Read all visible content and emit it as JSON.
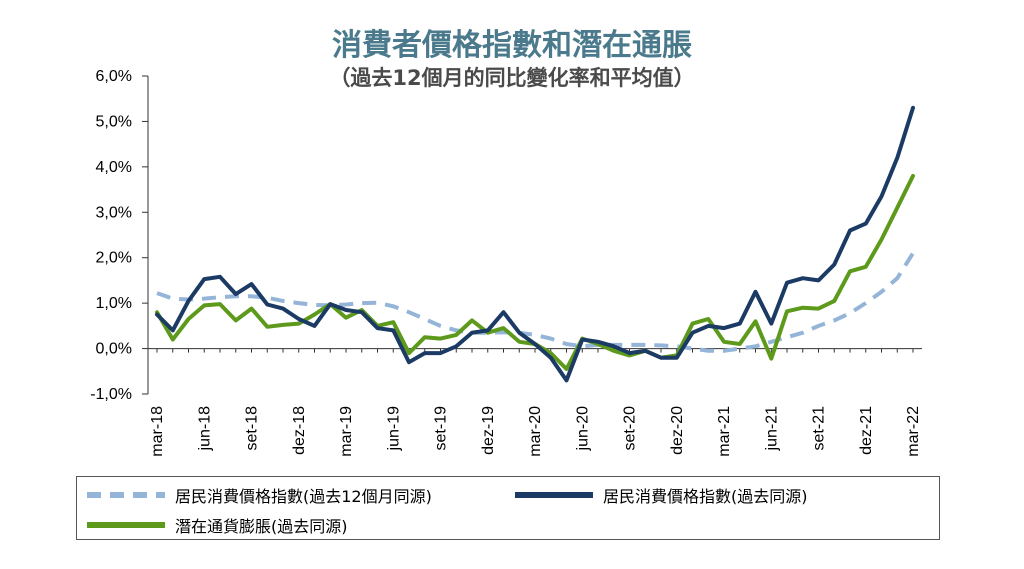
{
  "title": "消費者價格指數和潛在通脹",
  "subtitle": "（過去12個月的同比變化率和平均值）",
  "colors": {
    "avg": "#94b4d8",
    "cpi": "#1b3a64",
    "core": "#5d9a1c"
  },
  "legend": {
    "avg_label": "居民消費價格指數(過去12個月同源)",
    "cpi_label": "居民消費價格指數(過去同源)",
    "core_label": "潛在通貨膨脹(過去同源)"
  },
  "chart_data": {
    "type": "line",
    "title": "消費者價格指數和潛在通脹",
    "subtitle": "（過去12個月的同比變化率和平均值）",
    "ylim": [
      -1,
      6
    ],
    "yticks": [
      "6,0%",
      "5,0%",
      "4,0%",
      "3,0%",
      "2,0%",
      "1,0%",
      "0,0%",
      "-1,0%"
    ],
    "xtick_labels": [
      "mar-18",
      "jun-18",
      "set-18",
      "dez-18",
      "mar-19",
      "jun-19",
      "set-19",
      "dez-19",
      "mar-20",
      "jun-20",
      "set-20",
      "dez-20",
      "mar-21",
      "jun-21",
      "set-21",
      "dez-21",
      "mar-22"
    ],
    "x": [
      "mar-18",
      "abr-18",
      "mai-18",
      "jun-18",
      "jul-18",
      "ago-18",
      "set-18",
      "out-18",
      "nov-18",
      "dez-18",
      "jan-19",
      "fev-19",
      "mar-19",
      "abr-19",
      "mai-19",
      "jun-19",
      "jul-19",
      "ago-19",
      "set-19",
      "out-19",
      "nov-19",
      "dez-19",
      "jan-20",
      "fev-20",
      "mar-20",
      "abr-20",
      "mai-20",
      "jun-20",
      "jul-20",
      "ago-20",
      "set-20",
      "out-20",
      "nov-20",
      "dez-20",
      "jan-21",
      "fev-21",
      "mar-21",
      "abr-21",
      "mai-21",
      "jun-21",
      "jul-21",
      "ago-21",
      "set-21",
      "out-21",
      "nov-21",
      "dez-21",
      "jan-22",
      "fev-22",
      "mar-22"
    ],
    "legend_position": "bottom",
    "grid": false,
    "series": [
      {
        "name": "居民消費價格指數(過去12個月同源)",
        "style": "dashed",
        "values": [
          1.22,
          1.1,
          1.08,
          1.1,
          1.13,
          1.15,
          1.15,
          1.12,
          1.05,
          1.0,
          0.96,
          0.95,
          0.97,
          1.0,
          1.01,
          0.93,
          0.8,
          0.65,
          0.5,
          0.4,
          0.35,
          0.35,
          0.36,
          0.35,
          0.3,
          0.22,
          0.1,
          0.05,
          0.08,
          0.08,
          0.08,
          0.08,
          0.07,
          0.05,
          0.0,
          -0.05,
          -0.05,
          0.0,
          0.05,
          0.15,
          0.25,
          0.35,
          0.5,
          0.62,
          0.78,
          1.0,
          1.25,
          1.55,
          2.1
        ]
      },
      {
        "name": "居民消費價格指數(過去同源)",
        "style": "solid",
        "values": [
          0.75,
          0.4,
          1.05,
          1.53,
          1.58,
          1.2,
          1.42,
          0.97,
          0.88,
          0.65,
          0.5,
          0.98,
          0.85,
          0.8,
          0.45,
          0.4,
          -0.3,
          -0.1,
          -0.1,
          0.05,
          0.35,
          0.4,
          0.8,
          0.35,
          0.1,
          -0.2,
          -0.7,
          0.2,
          0.15,
          0.05,
          -0.1,
          -0.05,
          -0.2,
          -0.2,
          0.35,
          0.5,
          0.45,
          0.55,
          1.25,
          0.55,
          1.45,
          1.55,
          1.5,
          1.85,
          2.6,
          2.75,
          3.35,
          4.2,
          5.3
        ]
      },
      {
        "name": "潛在通貨膨脹(過去同源)",
        "style": "solid",
        "values": [
          0.8,
          0.2,
          0.65,
          0.95,
          0.98,
          0.62,
          0.88,
          0.48,
          0.52,
          0.55,
          0.75,
          0.98,
          0.68,
          0.85,
          0.5,
          0.58,
          -0.1,
          0.25,
          0.22,
          0.3,
          0.62,
          0.35,
          0.45,
          0.15,
          0.1,
          -0.1,
          -0.45,
          0.22,
          0.1,
          -0.05,
          -0.15,
          -0.05,
          -0.2,
          -0.15,
          0.55,
          0.65,
          0.15,
          0.1,
          0.6,
          -0.22,
          0.82,
          0.9,
          0.88,
          1.05,
          1.7,
          1.8,
          2.4,
          3.1,
          3.8
        ]
      }
    ]
  }
}
